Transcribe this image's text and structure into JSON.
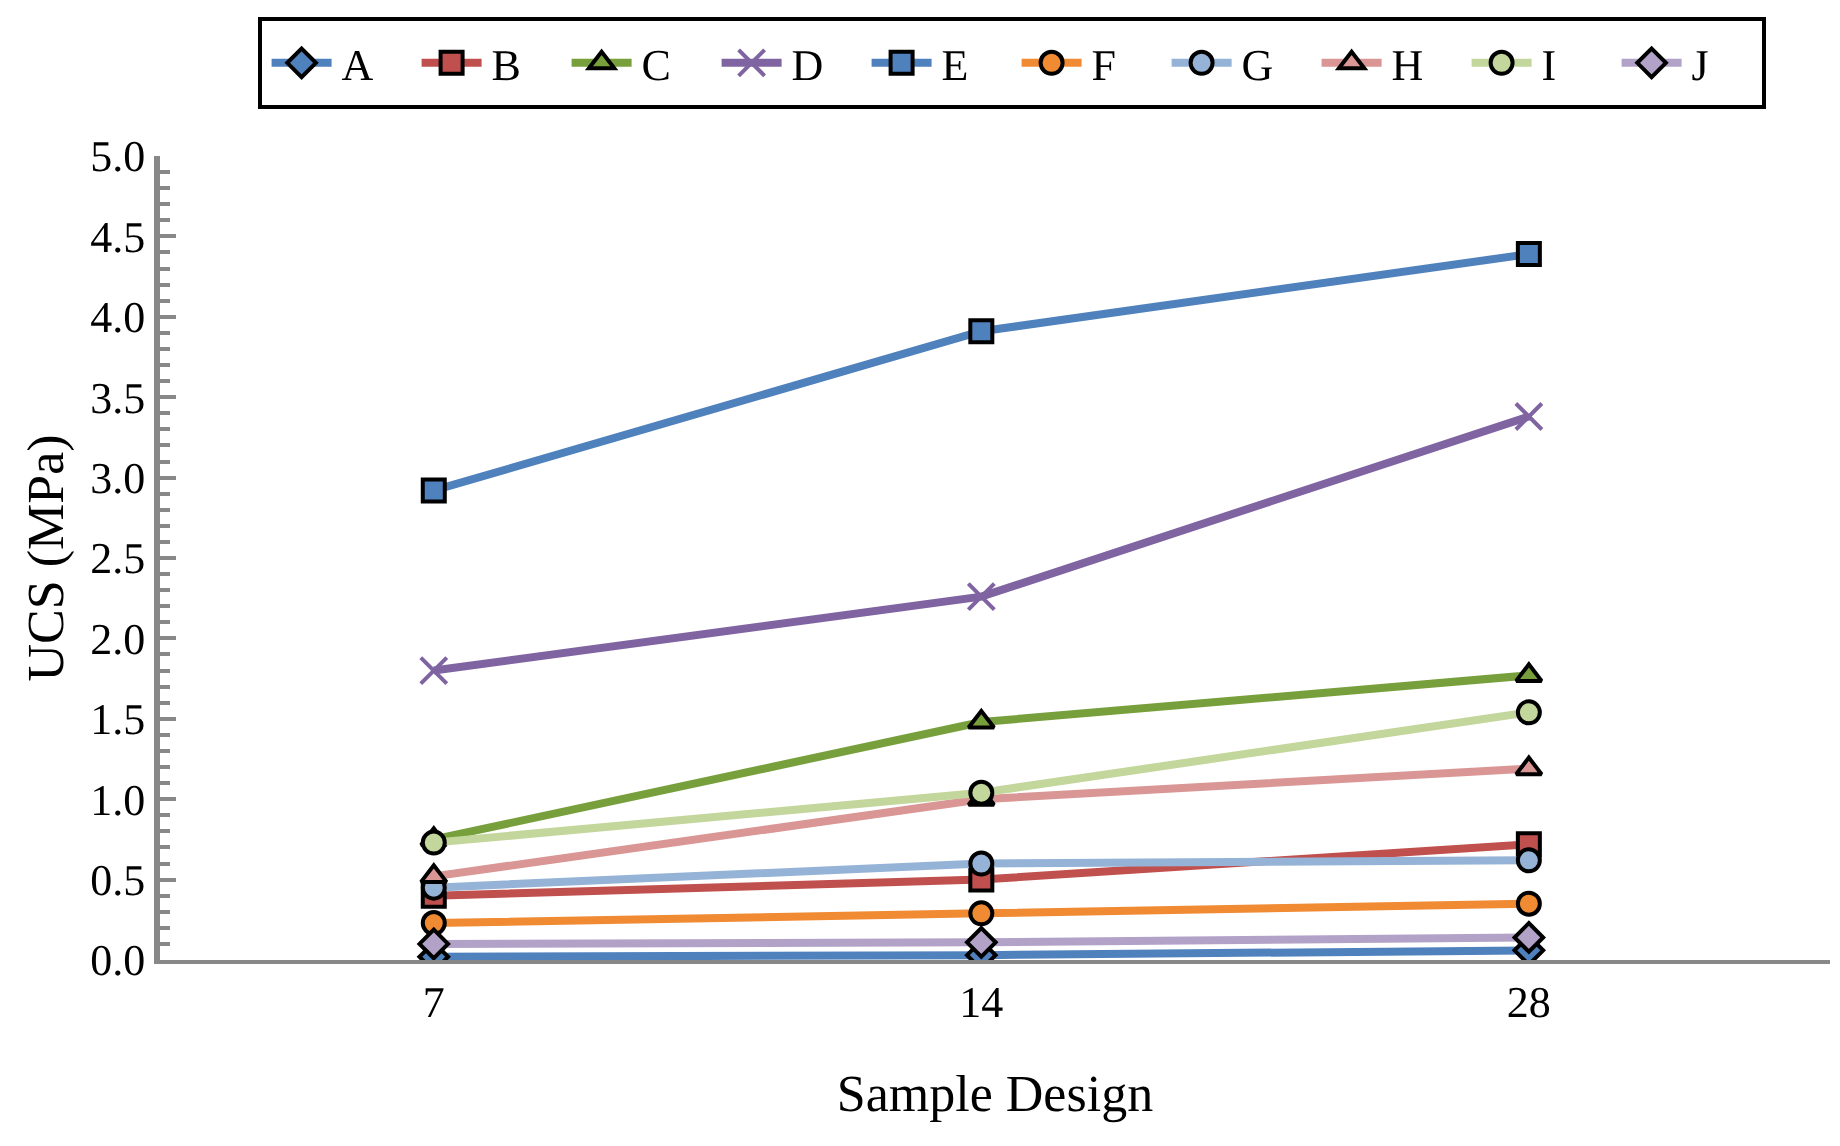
{
  "chart_data": {
    "type": "line",
    "xlabel": "Sample Design",
    "ylabel": "UCS (MPa)",
    "categories": [
      "7",
      "14",
      "28"
    ],
    "ylim": [
      0,
      5
    ],
    "yticks": [
      {
        "value": 0,
        "label": "0.0"
      },
      {
        "value": 0.5,
        "label": "0.5"
      },
      {
        "value": 1,
        "label": "1.0"
      },
      {
        "value": 1.5,
        "label": "1.5"
      },
      {
        "value": 2,
        "label": "2.0"
      },
      {
        "value": 2.5,
        "label": "2.5"
      },
      {
        "value": 3,
        "label": "3.0"
      },
      {
        "value": 3.5,
        "label": "3.5"
      },
      {
        "value": 4,
        "label": "4.0"
      },
      {
        "value": 4.5,
        "label": "4.5"
      },
      {
        "value": 5,
        "label": "5.0"
      }
    ],
    "legend": "top",
    "line_style": "solid",
    "series": [
      {
        "name": "A",
        "color": "#4f81bd",
        "marker": "diamond",
        "values": [
          0.02,
          0.03,
          0.06
        ]
      },
      {
        "name": "B",
        "color": "#c0504d",
        "marker": "square",
        "values": [
          0.4,
          0.5,
          0.72
        ]
      },
      {
        "name": "C",
        "color": "#77a03c",
        "marker": "triangle",
        "values": [
          0.75,
          1.48,
          1.77
        ]
      },
      {
        "name": "D",
        "color": "#8064a2",
        "marker": "cross",
        "values": [
          1.8,
          2.26,
          3.38
        ]
      },
      {
        "name": "E",
        "color": "#4f81bd",
        "marker": "square",
        "values": [
          2.92,
          3.91,
          4.39
        ]
      },
      {
        "name": "F",
        "color": "#f08a33",
        "marker": "circle",
        "values": [
          0.23,
          0.29,
          0.35
        ]
      },
      {
        "name": "G",
        "color": "#95b3d7",
        "marker": "circle",
        "values": [
          0.45,
          0.6,
          0.62
        ]
      },
      {
        "name": "H",
        "color": "#d99694",
        "marker": "triangle",
        "values": [
          0.52,
          1.0,
          1.19
        ]
      },
      {
        "name": "I",
        "color": "#c3d69b",
        "marker": "circle",
        "values": [
          0.73,
          1.04,
          1.54
        ]
      },
      {
        "name": "J",
        "color": "#b3a2c7",
        "marker": "diamond",
        "values": [
          0.1,
          0.11,
          0.14
        ]
      }
    ]
  }
}
